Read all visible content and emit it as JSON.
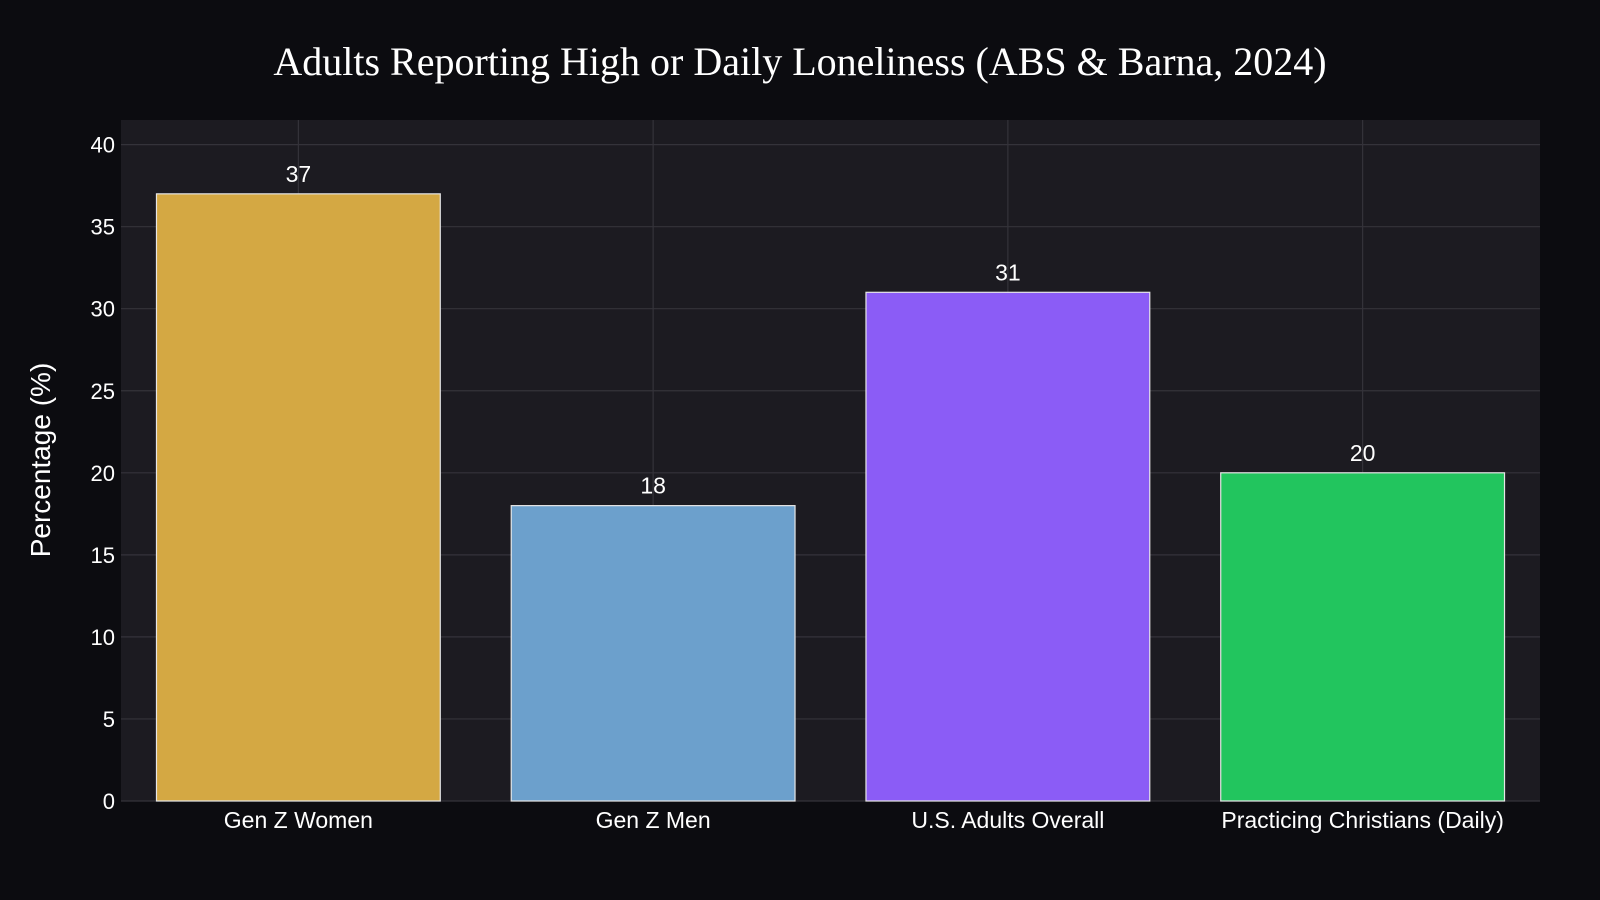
{
  "chart_data": {
    "type": "bar",
    "title": "Adults Reporting High or Daily Loneliness (ABS & Barna, 2024)",
    "xlabel": "",
    "ylabel": "Percentage (%)",
    "categories": [
      "Gen Z Women",
      "Gen Z Men",
      "U.S. Adults Overall",
      "Practicing Christians (Daily)"
    ],
    "values": [
      37,
      18,
      31,
      20
    ],
    "data_labels": [
      "37",
      "18",
      "31",
      "20"
    ],
    "bar_colors": [
      "#d4a843",
      "#6ca0cc",
      "#8b5cf6",
      "#22c55e"
    ],
    "ylim": [
      0,
      41.5
    ],
    "yticks": [
      0,
      5,
      10,
      15,
      20,
      25,
      30,
      35,
      40
    ],
    "grid": true,
    "legend": "none",
    "colors": {
      "page_background": "#0c0c10",
      "plot_background": "#1c1b21",
      "grid": "#34333a",
      "bar_outline": "#e6e6e6",
      "text": "#ffffff"
    }
  }
}
